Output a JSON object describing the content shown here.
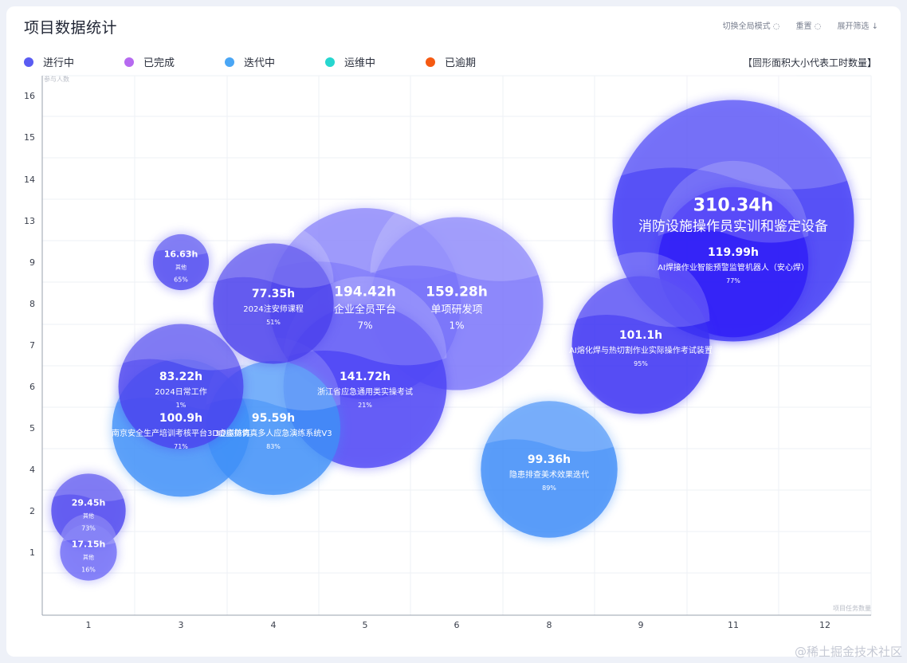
{
  "header": {
    "title": "项目数据统计",
    "toggle_label": "切换全局模式",
    "reset_label": "重置",
    "expand_label": "展开筛选 ↓"
  },
  "legend": [
    {
      "label": "进行中",
      "color": "#5a5cf2"
    },
    {
      "label": "已完成",
      "color": "#b66af0"
    },
    {
      "label": "迭代中",
      "color": "#4aa6f5"
    },
    {
      "label": "运维中",
      "color": "#26d6cf"
    },
    {
      "label": "已逾期",
      "color": "#f55a12"
    }
  ],
  "area_note": "【圆形面积大小代表工时数量】",
  "watermark": "@稀土掘金技术社区",
  "chart_data": {
    "type": "scatter",
    "subtype": "bubble",
    "ylabel": "参与人数",
    "xlabel": "项目任务数量",
    "x_ticks": [
      "1",
      "3",
      "4",
      "5",
      "6",
      "8",
      "9",
      "11",
      "12"
    ],
    "y_ticks": [
      "1",
      "2",
      "4",
      "5",
      "6",
      "7",
      "8",
      "9",
      "13",
      "14",
      "15",
      "16"
    ],
    "grid": true,
    "points": [
      {
        "x": "11",
        "y": "13",
        "hours": "310.34h",
        "name": "消防设施操作员实训和鉴定设备",
        "pct": "",
        "status": "进行中",
        "color": "#3b35f5"
      },
      {
        "x": "11",
        "y": "9",
        "hours": "119.99h",
        "name": "AI焊接作业智能预警监管机器人（安心焊）",
        "pct": "77%",
        "status": "进行中",
        "color": "#2f1df7"
      },
      {
        "x": "9",
        "y": "7",
        "hours": "101.1h",
        "name": "AI熔化焊与热切割作业实际操作考试装置",
        "pct": "95%",
        "status": "进行中",
        "color": "#3a30f2"
      },
      {
        "x": "5",
        "y": "8",
        "hours": "194.42h",
        "name": "企业全员平台",
        "pct": "7%",
        "status": "进行中",
        "color": "#7670f8"
      },
      {
        "x": "6",
        "y": "8",
        "hours": "159.28h",
        "name": "单项研发项",
        "pct": "1%",
        "status": "进行中",
        "color": "#7a74fa"
      },
      {
        "x": "5",
        "y": "6",
        "hours": "141.72h",
        "name": "浙江省应急通用类实操考试",
        "pct": "21%",
        "status": "进行中",
        "color": "#4b43f5"
      },
      {
        "x": "4",
        "y": "8",
        "hours": "77.35h",
        "name": "2024注安师课程",
        "pct": "51%",
        "status": "进行中",
        "color": "#4a40ec"
      },
      {
        "x": "3",
        "y": "9",
        "hours": "16.63h",
        "name": "其他",
        "pct": "65%",
        "status": "进行中",
        "color": "#4d46f0"
      },
      {
        "x": "3",
        "y": "6",
        "hours": "83.22h",
        "name": "2024日常工作",
        "pct": "1%",
        "status": "进行中",
        "color": "#4a42ee"
      },
      {
        "x": "3",
        "y": "5",
        "hours": "100.9h",
        "name": "南京安全生产培训考核平台3D虚拟仿真",
        "pct": "71%",
        "status": "迭代中",
        "color": "#3f8ff7"
      },
      {
        "x": "4",
        "y": "5",
        "hours": "95.59h",
        "name": "3D虚拟仿真多人应急演练系统V3",
        "pct": "83%",
        "status": "迭代中",
        "color": "#3f8ff7"
      },
      {
        "x": "8",
        "y": "4",
        "hours": "99.36h",
        "name": "隐患排查美术效果迭代",
        "pct": "89%",
        "status": "迭代中",
        "color": "#3d8cf7"
      },
      {
        "x": "1",
        "y": "2",
        "hours": "29.45h",
        "name": "其他",
        "pct": "73%",
        "status": "进行中",
        "color": "#4a42ee"
      },
      {
        "x": "1",
        "y": "1",
        "hours": "17.15h",
        "name": "其他",
        "pct": "16%",
        "status": "进行中",
        "color": "#6e6af6"
      }
    ]
  }
}
